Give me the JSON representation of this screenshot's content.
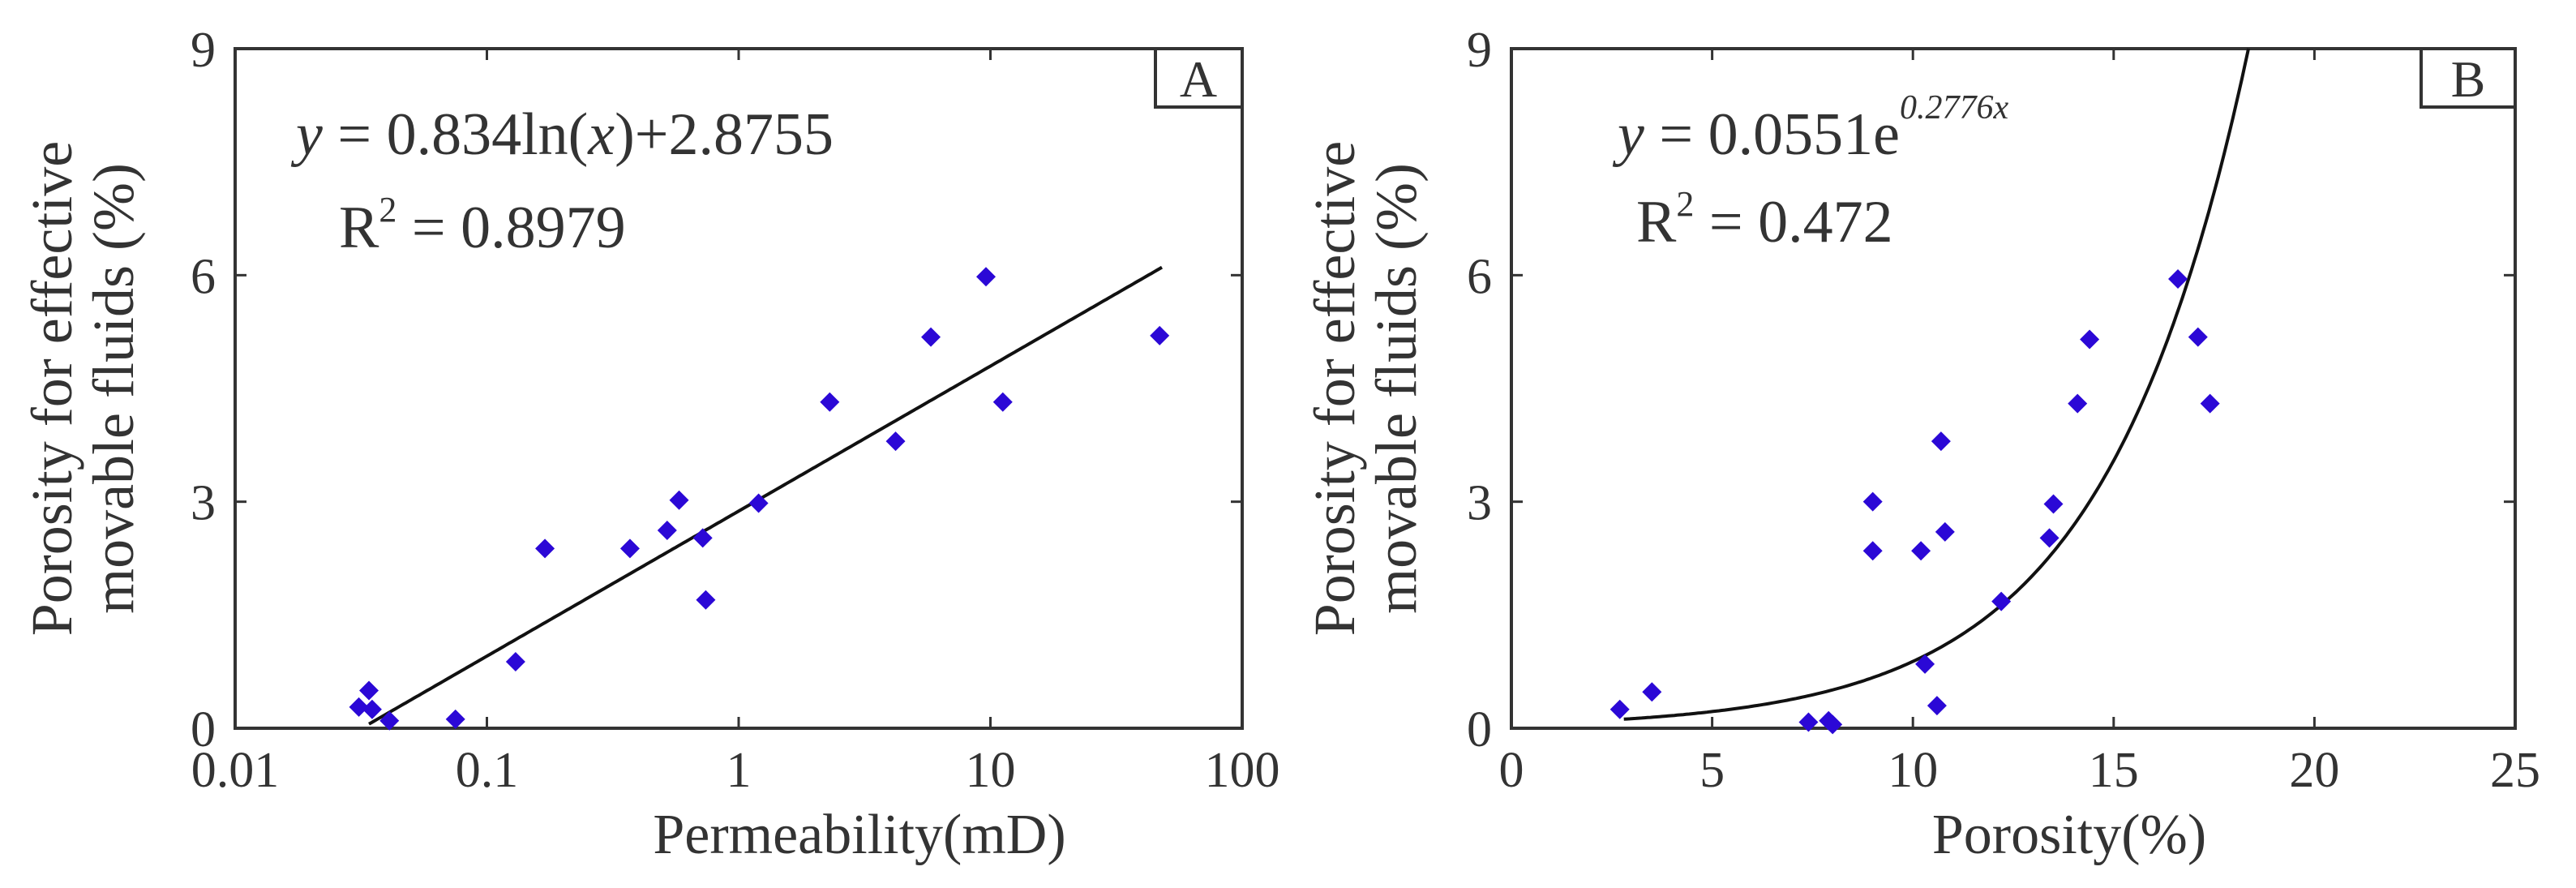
{
  "chart_data": [
    {
      "panel": "A",
      "type": "scatter",
      "xscale": "log",
      "xlabel": "Permeability(mD)",
      "ylabel": [
        "Porosity for effective",
        "movable fluids (%)"
      ],
      "xlim": [
        0.01,
        100
      ],
      "ylim": [
        0,
        9
      ],
      "xticks": [
        0.01,
        0.1,
        1,
        10,
        100
      ],
      "xtick_labels": [
        "0.01",
        "0.1",
        "1",
        "10",
        "100"
      ],
      "yticks": [
        0,
        3,
        6,
        9
      ],
      "ytick_labels": [
        "0",
        "3",
        "6",
        "9"
      ],
      "equation": {
        "y": "y",
        "rhs": " = 0.834ln(",
        "x": "x",
        "tail": ")+2.8755"
      },
      "r2": {
        "R": "R",
        "sup": "2",
        "rhs": " = 0.8979"
      },
      "fit": {
        "form": "log",
        "a": 0.834,
        "b": 2.8755,
        "x_range": [
          0.034,
          48
        ]
      },
      "points": [
        {
          "x": 0.031,
          "y": 0.28
        },
        {
          "x": 0.034,
          "y": 0.5
        },
        {
          "x": 0.035,
          "y": 0.25
        },
        {
          "x": 0.041,
          "y": 0.1
        },
        {
          "x": 0.075,
          "y": 0.12
        },
        {
          "x": 0.13,
          "y": 0.88
        },
        {
          "x": 0.17,
          "y": 2.38
        },
        {
          "x": 0.37,
          "y": 2.38
        },
        {
          "x": 0.52,
          "y": 2.62
        },
        {
          "x": 0.58,
          "y": 3.02
        },
        {
          "x": 0.72,
          "y": 2.52
        },
        {
          "x": 0.74,
          "y": 1.7
        },
        {
          "x": 1.2,
          "y": 2.98
        },
        {
          "x": 2.3,
          "y": 4.32
        },
        {
          "x": 4.2,
          "y": 3.8
        },
        {
          "x": 5.8,
          "y": 5.18
        },
        {
          "x": 9.6,
          "y": 5.98
        },
        {
          "x": 11.2,
          "y": 4.32
        },
        {
          "x": 47,
          "y": 5.2
        }
      ]
    },
    {
      "panel": "B",
      "type": "scatter",
      "xscale": "linear",
      "xlabel": "Porosity(%)",
      "ylabel": [
        "Porosity for effective",
        "movable fluids (%)"
      ],
      "xlim": [
        0,
        25
      ],
      "ylim": [
        0,
        9
      ],
      "xticks": [
        0,
        5,
        10,
        15,
        20,
        25
      ],
      "xtick_labels": [
        "0",
        "5",
        "10",
        "15",
        "20",
        "25"
      ],
      "yticks": [
        0,
        3,
        6,
        9
      ],
      "ytick_labels": [
        "0",
        "3",
        "6",
        "9"
      ],
      "equation": {
        "y": "y",
        "rhs": " = 0.0551e",
        "sup": "0.2776x"
      },
      "r2": {
        "R": "R",
        "sup": "2",
        "rhs": " = 0.472"
      },
      "fit": {
        "form": "exp",
        "a": 0.0551,
        "b": 0.2776,
        "x_range": [
          2.8,
          25
        ]
      },
      "points": [
        {
          "x": 2.7,
          "y": 0.25
        },
        {
          "x": 3.5,
          "y": 0.48
        },
        {
          "x": 7.4,
          "y": 0.08
        },
        {
          "x": 7.9,
          "y": 0.1
        },
        {
          "x": 8.0,
          "y": 0.05
        },
        {
          "x": 9.0,
          "y": 3.0
        },
        {
          "x": 9.0,
          "y": 2.35
        },
        {
          "x": 10.2,
          "y": 2.35
        },
        {
          "x": 10.3,
          "y": 0.85
        },
        {
          "x": 10.6,
          "y": 0.3
        },
        {
          "x": 10.7,
          "y": 3.8
        },
        {
          "x": 10.8,
          "y": 2.6
        },
        {
          "x": 12.2,
          "y": 1.68
        },
        {
          "x": 13.4,
          "y": 2.52
        },
        {
          "x": 13.5,
          "y": 2.97
        },
        {
          "x": 14.1,
          "y": 4.3
        },
        {
          "x": 14.4,
          "y": 5.15
        },
        {
          "x": 16.6,
          "y": 5.95
        },
        {
          "x": 17.1,
          "y": 5.18
        },
        {
          "x": 17.4,
          "y": 4.3
        }
      ]
    }
  ]
}
